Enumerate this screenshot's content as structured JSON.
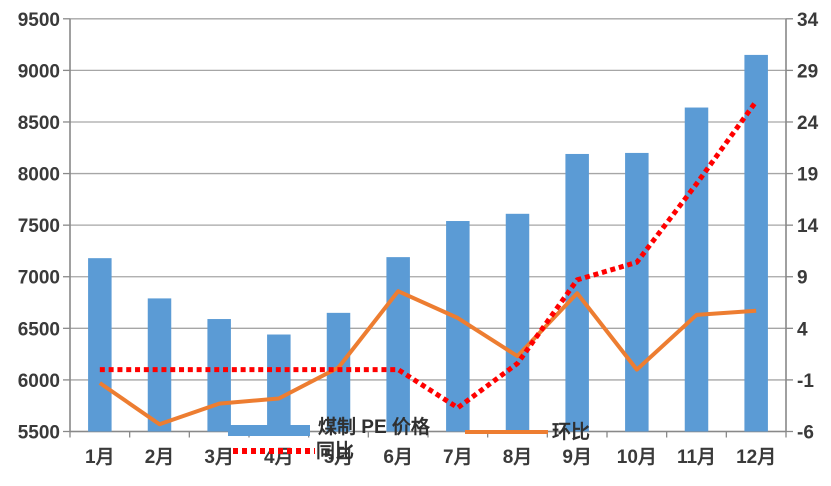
{
  "chart_data": {
    "type": "combo",
    "title": "",
    "categories": [
      "1月",
      "2月",
      "3月",
      "4月",
      "5月",
      "6月",
      "7月",
      "8月",
      "9月",
      "10月",
      "11月",
      "12月"
    ],
    "series": [
      {
        "name": "煤制 PE 价格",
        "type": "bar",
        "axis": "left",
        "color": "#5B9BD5",
        "values": [
          7180,
          6790,
          6590,
          6440,
          6650,
          7190,
          7540,
          7610,
          8190,
          8200,
          8640,
          9150
        ]
      },
      {
        "name": "环比",
        "type": "line",
        "style": "solid",
        "axis": "right",
        "color": "#ED7D31",
        "values": [
          -1.3,
          -5.3,
          -3.3,
          -2.8,
          0.2,
          7.6,
          5.0,
          1.3,
          7.4,
          0.0,
          5.3,
          5.7
        ]
      },
      {
        "name": "同比",
        "type": "line",
        "style": "dashed",
        "axis": "right",
        "color": "#FF0000",
        "values": [
          0,
          0,
          0,
          0,
          0,
          0,
          -3.7,
          0.6,
          8.7,
          10.4,
          18,
          26
        ]
      }
    ],
    "left_axis": {
      "min": 5500,
      "max": 9500,
      "step": 500,
      "ticks": [
        5500,
        6000,
        6500,
        7000,
        7500,
        8000,
        8500,
        9000,
        9500
      ]
    },
    "right_axis": {
      "min": -6,
      "max": 34,
      "step": 5,
      "ticks": [
        -6,
        -1,
        4,
        9,
        14,
        19,
        24,
        29,
        34
      ]
    },
    "grid": true,
    "legend_position": "bottom-overlapping"
  },
  "legend": {
    "bar_label": "煤制 PE 价格",
    "tongbi_label": "同比",
    "huanbi_label": "环比"
  },
  "colors": {
    "bar": "#5B9BD5",
    "huanbi": "#ED7D31",
    "tongbi": "#FF0000",
    "grid": "#A6A6A6",
    "axis": "#898989",
    "text": "#3A3A3A"
  }
}
